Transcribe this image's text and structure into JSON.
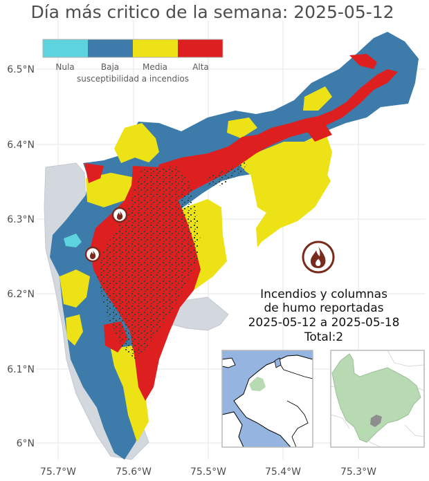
{
  "title": "Día más critico de la semana: 2025-05-12",
  "legend": {
    "title": "susceptibilidad a incendios",
    "classes": [
      {
        "label": "Nula",
        "color": "#5dd3dd"
      },
      {
        "label": "Baja",
        "color": "#3d7caa"
      },
      {
        "label": "Media",
        "color": "#ede215"
      },
      {
        "label": "Alta",
        "color": "#dd1f1f"
      }
    ]
  },
  "axes": {
    "x_ticks": [
      "75.7°W",
      "75.6°W",
      "75.5°W",
      "75.4°W",
      "75.3°W"
    ],
    "y_ticks": [
      "6.5°N",
      "6.4°N",
      "6.3°N",
      "6.2°N",
      "6.1°N",
      "6°N"
    ]
  },
  "fire_reports": {
    "line1": "Incendios y columnas",
    "line2": "de humo reportadas",
    "line3": "2025-05-12 a 2025-05-18",
    "line4": "Total:2"
  },
  "colors": {
    "background_region": "#d3d7de",
    "gridline": "#e6e6e6",
    "fire_icon": "#7a2a1d",
    "inset_land": "#b7dab3",
    "inset_sea": "#95b5e0"
  },
  "icons": [
    "fire-icon",
    "fire-marker-icon"
  ]
}
